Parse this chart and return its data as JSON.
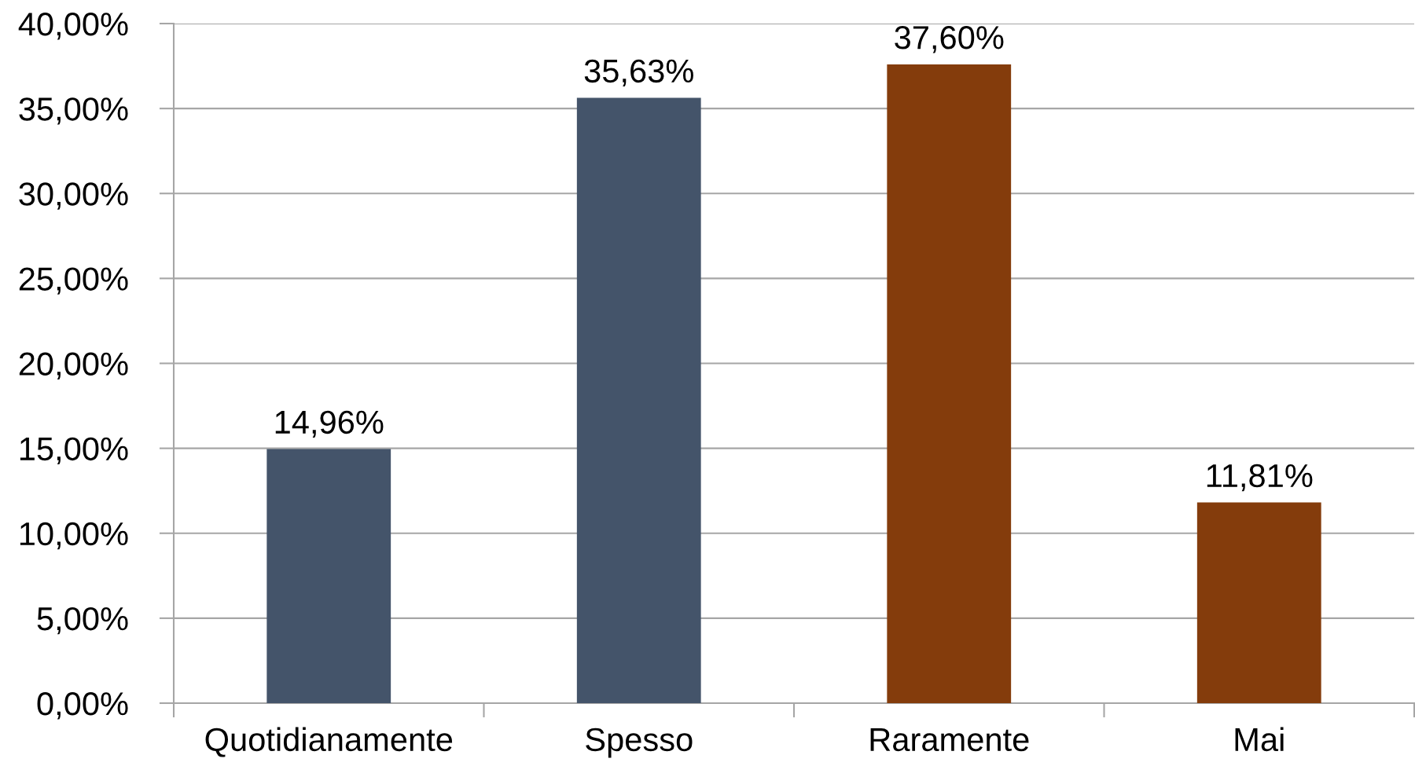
{
  "chart_data": {
    "type": "bar",
    "categories": [
      "Quotidianamente",
      "Spesso",
      "Raramente",
      "Mai"
    ],
    "values": [
      14.96,
      35.63,
      37.6,
      11.81
    ],
    "colors": [
      "#44546a",
      "#44546a",
      "#843c0c",
      "#843c0c"
    ],
    "value_labels": [
      "14,96%",
      "35,63%",
      "37,60%",
      "11,81%"
    ],
    "ylim": [
      0,
      40
    ],
    "yticks": [
      {
        "value": 0,
        "label": "0,00%"
      },
      {
        "value": 5,
        "label": "5,00%"
      },
      {
        "value": 10,
        "label": "10,00%"
      },
      {
        "value": 15,
        "label": "15,00%"
      },
      {
        "value": 20,
        "label": "20,00%"
      },
      {
        "value": 25,
        "label": "25,00%"
      },
      {
        "value": 30,
        "label": "30,00%"
      },
      {
        "value": 35,
        "label": "35,00%"
      },
      {
        "value": 40,
        "label": "40,00%"
      }
    ],
    "grid": "y"
  }
}
